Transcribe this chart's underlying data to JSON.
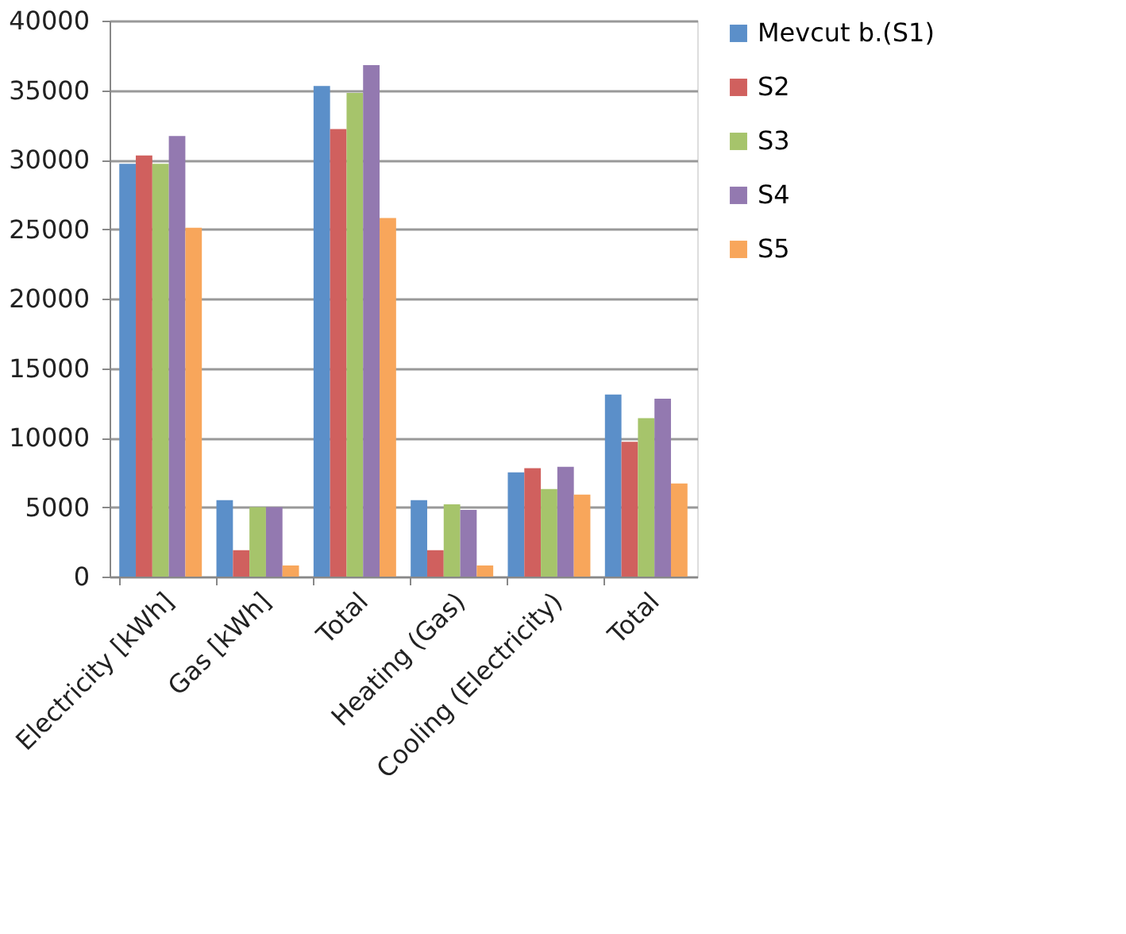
{
  "chart_data": {
    "type": "bar",
    "categories": [
      "Electricity [kWh]",
      "Gas [kWh]",
      "Total",
      "Heating (Gas)",
      "Cooling (Electricity)",
      "Total"
    ],
    "series": [
      {
        "name": "Mevcut b.(S1)",
        "color": "#5b8fc9",
        "values": [
          29700,
          5500,
          35300,
          5500,
          7500,
          13100
        ]
      },
      {
        "name": "S2",
        "color": "#d0605e",
        "values": [
          30300,
          1900,
          32200,
          1900,
          7800,
          9700
        ]
      },
      {
        "name": "S3",
        "color": "#a6c46b",
        "values": [
          29700,
          5000,
          34800,
          5200,
          6300,
          11400
        ]
      },
      {
        "name": "S4",
        "color": "#9379b0",
        "values": [
          31700,
          5000,
          36800,
          4800,
          7900,
          12800
        ]
      },
      {
        "name": "S5",
        "color": "#f8a65b",
        "values": [
          25100,
          800,
          25800,
          800,
          5900,
          6700
        ]
      }
    ],
    "ylim": [
      0,
      40000
    ],
    "yticks": [
      0,
      5000,
      10000,
      15000,
      20000,
      25000,
      30000,
      35000,
      40000
    ],
    "grid": "y",
    "legend": "right"
  }
}
